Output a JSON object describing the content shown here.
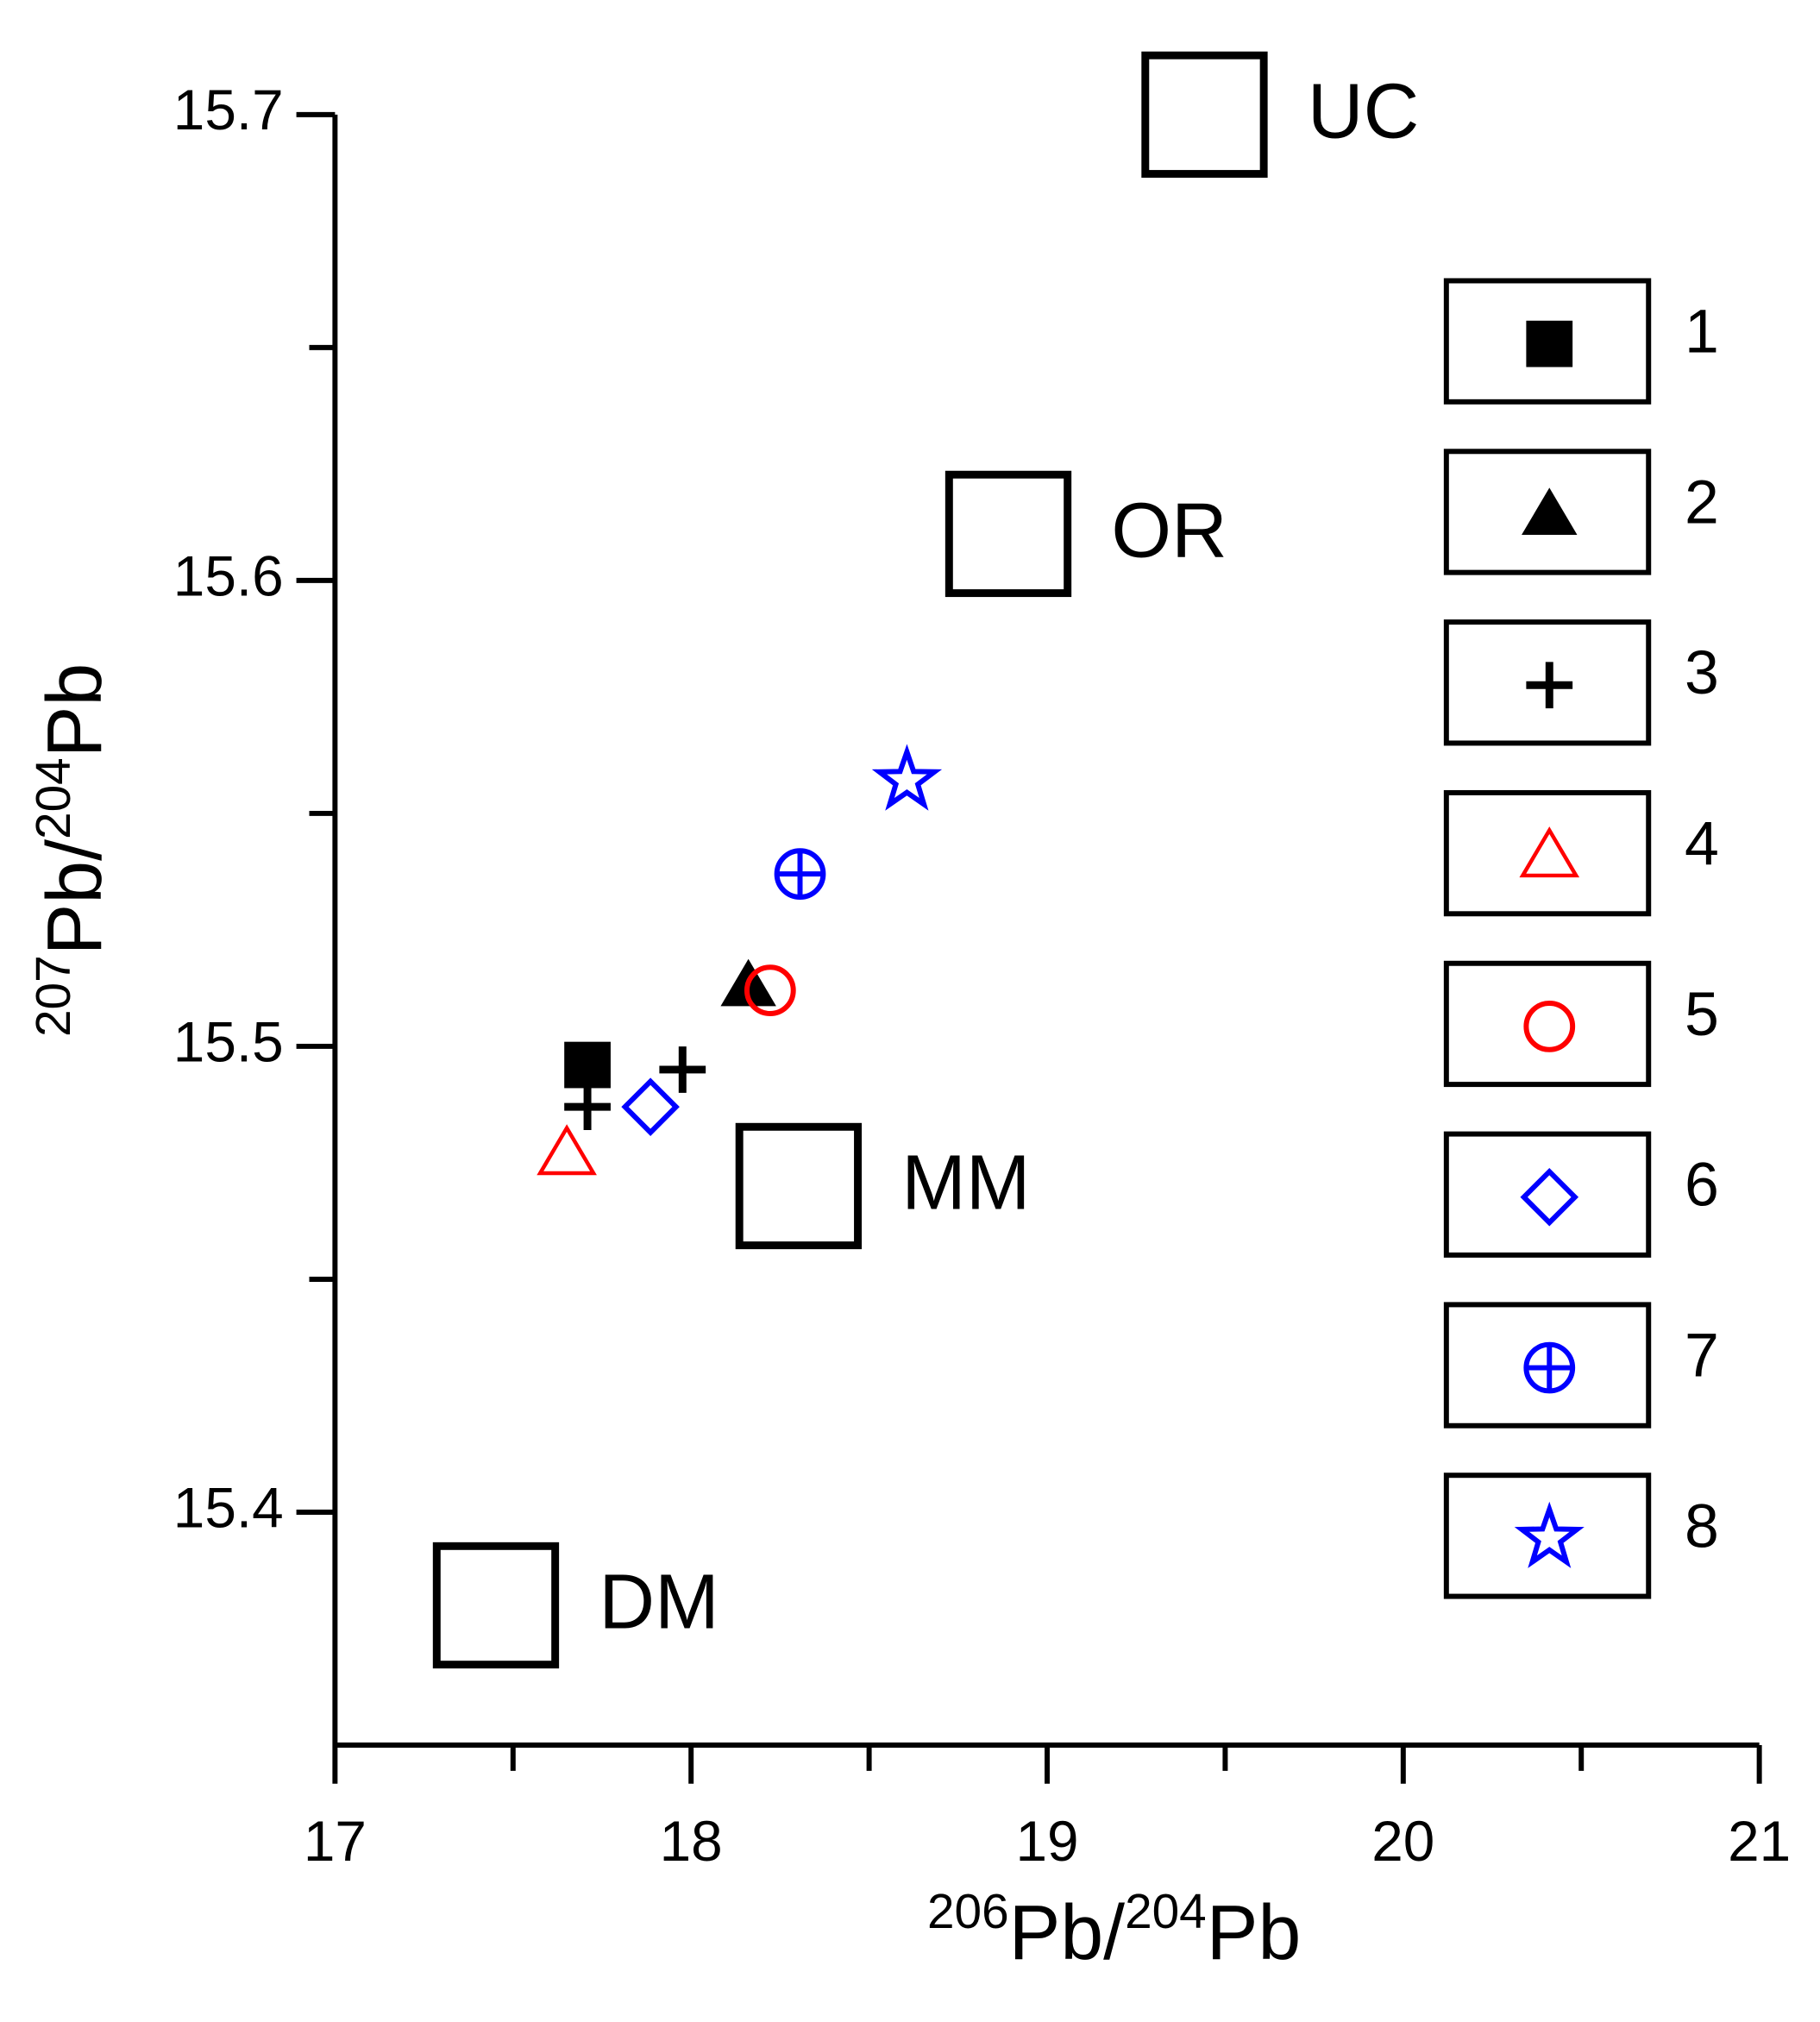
{
  "chart_data": {
    "type": "scatter",
    "xlabel": [
      "206",
      "Pb/",
      "204",
      "Pb"
    ],
    "ylabel": [
      "207",
      "Pb/",
      "204",
      "Pb"
    ],
    "xlim": [
      17,
      21
    ],
    "xticks": [
      17,
      18,
      19,
      20,
      21
    ],
    "xticks_minor": [
      17.5,
      18.5,
      19.5,
      20.5
    ],
    "ylim": [
      15.35,
      15.7
    ],
    "yticks": [
      15.4,
      15.5,
      15.6,
      15.7
    ],
    "yticks_minor": [
      15.45,
      15.55,
      15.65
    ],
    "legend": "right",
    "series": [
      {
        "name": "1",
        "color": "#000000",
        "marker": "square-filled",
        "x": [
          17.709
        ],
        "y": [
          15.496
        ]
      },
      {
        "name": "2",
        "color": "#000000",
        "marker": "triangle-filled",
        "x": [
          18.161
        ],
        "y": [
          15.513
        ]
      },
      {
        "name": "3",
        "color": "#000000",
        "marker": "plus",
        "x": [
          17.976,
          17.709
        ],
        "y": [
          15.495,
          15.487
        ]
      },
      {
        "name": "4",
        "color": "#ff0000",
        "marker": "triangle-open",
        "x": [
          17.651
        ],
        "y": [
          15.477
        ]
      },
      {
        "name": "5",
        "color": "#ff0000",
        "marker": "circle-open",
        "x": [
          18.222
        ],
        "y": [
          15.512
        ]
      },
      {
        "name": "6",
        "color": "#0000ff",
        "marker": "diamond-open",
        "x": [
          17.886
        ],
        "y": [
          15.487
        ]
      },
      {
        "name": "7",
        "color": "#0000ff",
        "marker": "circle-plus",
        "x": [
          18.306
        ],
        "y": [
          15.537
        ]
      },
      {
        "name": "8",
        "color": "#0000ff",
        "marker": "star-open",
        "x": [
          18.606
        ],
        "y": [
          15.557
        ]
      }
    ],
    "reservoirs": [
      {
        "name": "UC",
        "x": 19.442,
        "y": 15.7
      },
      {
        "name": "OR",
        "x": 18.891,
        "y": 15.61
      },
      {
        "name": "MM",
        "x": 18.302,
        "y": 15.47
      },
      {
        "name": "DM",
        "x": 17.452,
        "y": 15.38
      }
    ]
  }
}
